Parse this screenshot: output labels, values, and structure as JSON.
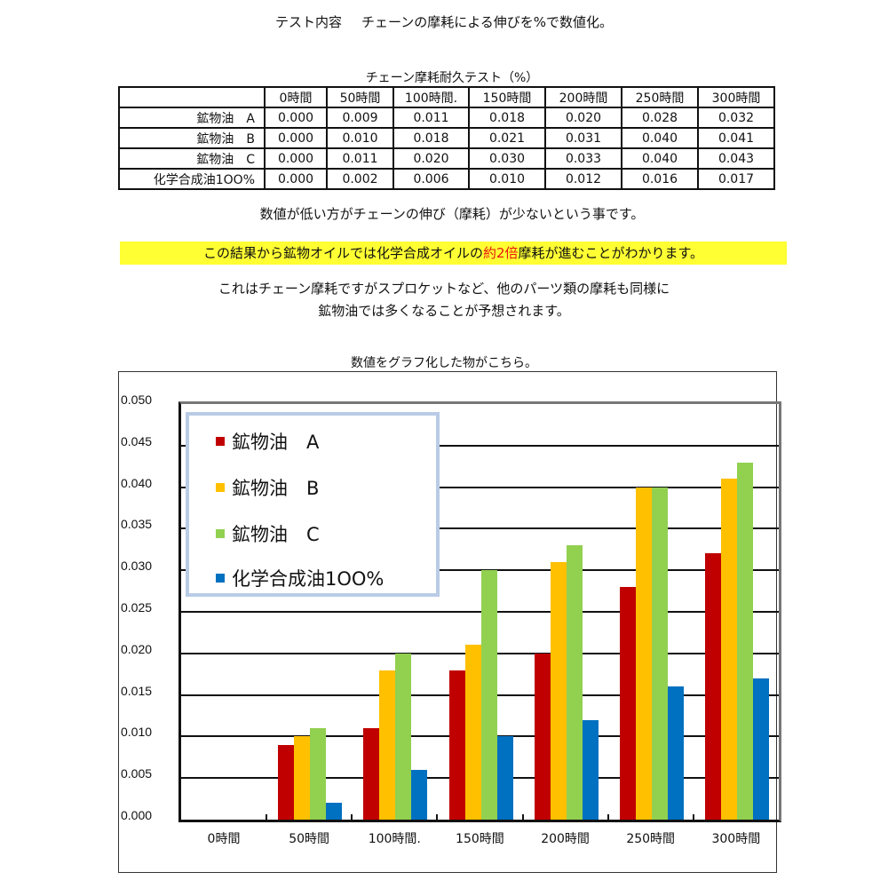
{
  "heading": {
    "label": "テスト内容",
    "text": "チェーンの摩耗による伸びを%で数値化。"
  },
  "table": {
    "title": "チェーン摩耗耐久テスト（%）",
    "columns": [
      "0時間",
      "50時間",
      "100時間.",
      "150時間",
      "200時間",
      "250時間",
      "300時間"
    ],
    "rows": [
      {
        "label": "鉱物油　A",
        "values": [
          "0.000",
          "0.009",
          "0.011",
          "0.018",
          "0.020",
          "0.028",
          "0.032"
        ]
      },
      {
        "label": "鉱物油　B",
        "values": [
          "0.000",
          "0.010",
          "0.018",
          "0.021",
          "0.031",
          "0.040",
          "0.041"
        ]
      },
      {
        "label": "鉱物油　C",
        "values": [
          "0.000",
          "0.011",
          "0.020",
          "0.030",
          "0.033",
          "0.040",
          "0.043"
        ]
      },
      {
        "label": "化学合成油1OO%",
        "values": [
          "0.000",
          "0.002",
          "0.006",
          "0.010",
          "0.012",
          "0.016",
          "0.017"
        ]
      }
    ]
  },
  "note": "数値が低い方がチェーンの伸び（摩耗）が少ないという事です。",
  "highlight": {
    "before": "この結果から鉱物オイルでは化学合成オイルの",
    "emphasis": "約2倍",
    "after": "摩耗が進むことがわかります。",
    "bg_color": "#ffff33",
    "emphasis_color": "#e8160c"
  },
  "paragraph": {
    "line1": "これはチェーン摩耗ですがスプロケットなど、他のパーツ類の摩耗も同様に",
    "line2": "鉱物油では多くなることが予想されます。"
  },
  "chart_caption": "数値をグラフ化した物がこちら。",
  "chart_data": {
    "type": "bar",
    "title": "",
    "xlabel": "",
    "ylabel": "",
    "ylim": [
      0,
      0.05
    ],
    "yticks": [
      "0.000",
      "0.005",
      "0.010",
      "0.015",
      "0.020",
      "0.025",
      "0.030",
      "0.035",
      "0.040",
      "0.045",
      "0.050"
    ],
    "grid": true,
    "legend_position": "upper-left-inside",
    "categories": [
      "0時間",
      "50時間",
      "100時間.",
      "150時間",
      "200時間",
      "250時間",
      "300時間"
    ],
    "series": [
      {
        "name": "鉱物油　A",
        "color": "#c00000",
        "values": [
          0.0,
          0.009,
          0.011,
          0.018,
          0.02,
          0.028,
          0.032
        ]
      },
      {
        "name": "鉱物油　B",
        "color": "#ffc000",
        "values": [
          0.0,
          0.01,
          0.018,
          0.021,
          0.031,
          0.04,
          0.041
        ]
      },
      {
        "name": "鉱物油　C",
        "color": "#92d050",
        "values": [
          0.0,
          0.011,
          0.02,
          0.03,
          0.033,
          0.04,
          0.043
        ]
      },
      {
        "name": "化学合成油1OO%",
        "color": "#0070c0",
        "values": [
          0.0,
          0.002,
          0.006,
          0.01,
          0.012,
          0.016,
          0.017
        ]
      }
    ]
  }
}
